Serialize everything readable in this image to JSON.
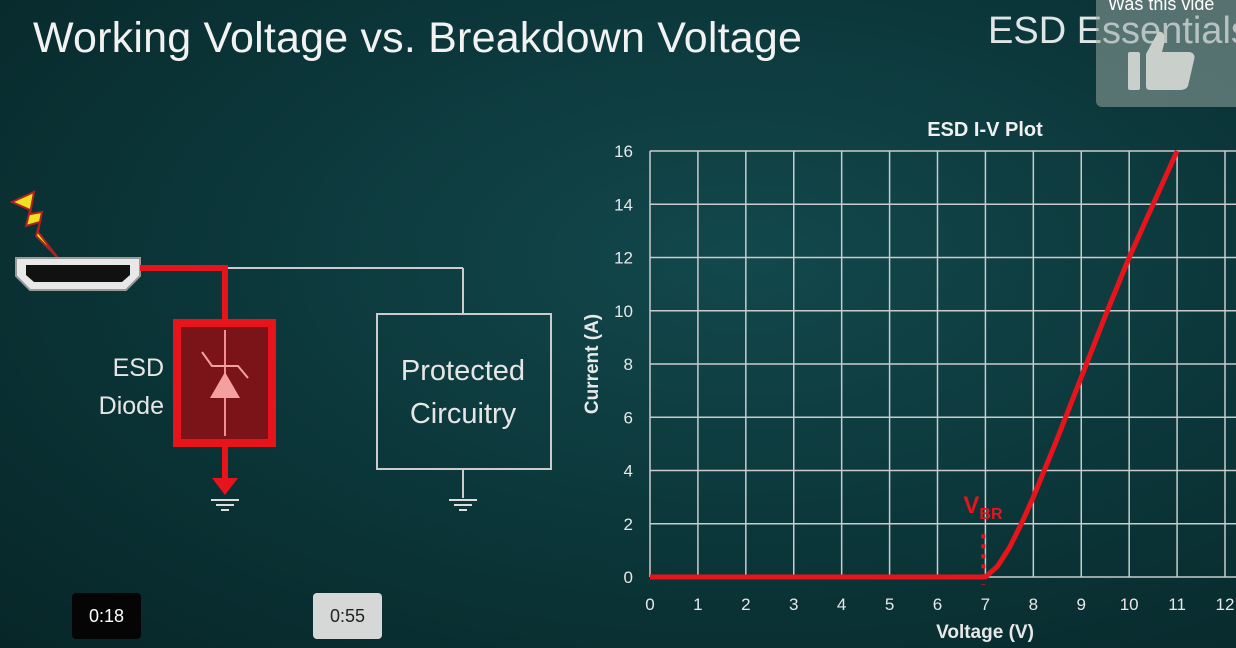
{
  "slide": {
    "title": "Working Voltage vs. Breakdown Voltage",
    "brand": "ESD Essentials",
    "diode_label_line1": "ESD",
    "diode_label_line2": "Diode",
    "box_label_line1": "Protected",
    "box_label_line2": "Circuitry",
    "vbr_main": "V",
    "vbr_sub": "BR"
  },
  "overlay": {
    "feedback_question": "Was this vide",
    "feedback_icon": "thumbs-up-icon"
  },
  "video": {
    "timestamp_current": "0:18",
    "timestamp_hover": "0:55"
  },
  "colors": {
    "curve": "#e8141c",
    "grid": "#c8cccc",
    "accent": "#e8141c"
  },
  "chart_data": {
    "type": "line",
    "title": "ESD I-V Plot",
    "xlabel": "Voltage (V)",
    "ylabel": "Current (A)",
    "xlim": [
      0,
      12
    ],
    "ylim": [
      0,
      16
    ],
    "xticks": [
      "0",
      "1",
      "2",
      "3",
      "4",
      "5",
      "6",
      "7",
      "8",
      "9",
      "10",
      "11",
      "12"
    ],
    "yticks": [
      "0",
      "2",
      "4",
      "6",
      "8",
      "10",
      "12",
      "14",
      "16"
    ],
    "grid": true,
    "x": [
      0,
      7,
      7.25,
      7.5,
      7.75,
      8,
      8.5,
      9,
      9.5,
      10,
      10.5,
      11
    ],
    "y": [
      0,
      0,
      0.4,
      1.1,
      2.0,
      3.0,
      5.2,
      7.5,
      9.8,
      12.0,
      14.0,
      16.0
    ],
    "annotations": [
      {
        "text": "VBR",
        "x": 7
      }
    ]
  }
}
